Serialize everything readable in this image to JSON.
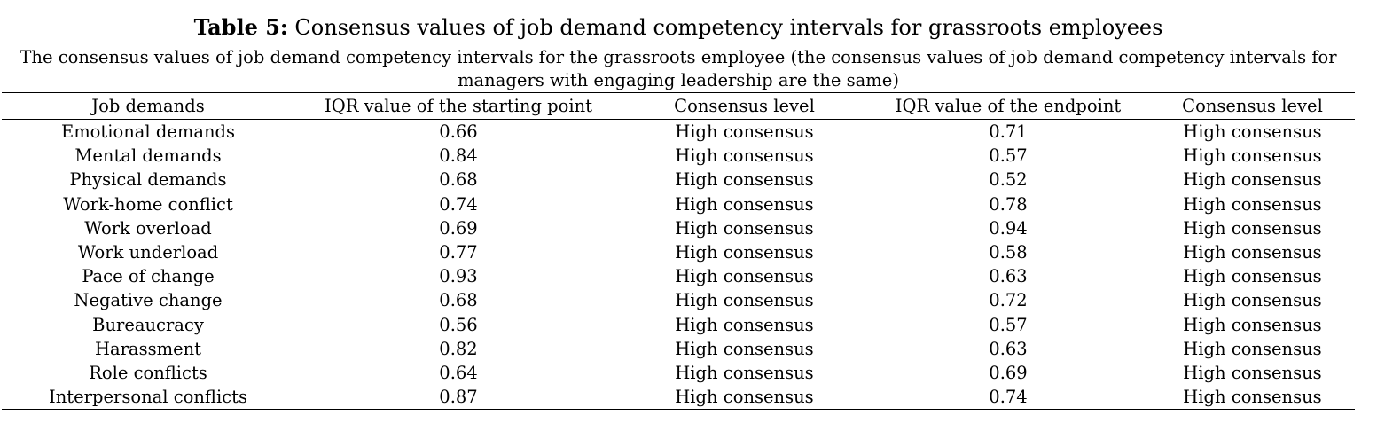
{
  "caption": {
    "label": "Table 5:",
    "text": "Consensus values of job demand competency intervals for grassroots employees"
  },
  "table": {
    "span_header": "The consensus values of job demand competency intervals for the grassroots employee (the consensus values of job demand competency intervals for managers with engaging leadership are the same)",
    "columns": [
      "Job demands",
      "IQR value of the starting point",
      "Consensus level",
      "IQR value of the endpoint",
      "Consensus level"
    ],
    "rows": [
      [
        "Emotional demands",
        "0.66",
        "High consensus",
        "0.71",
        "High consensus"
      ],
      [
        "Mental demands",
        "0.84",
        "High consensus",
        "0.57",
        "High consensus"
      ],
      [
        "Physical demands",
        "0.68",
        "High consensus",
        "0.52",
        "High consensus"
      ],
      [
        "Work-home conflict",
        "0.74",
        "High consensus",
        "0.78",
        "High consensus"
      ],
      [
        "Work overload",
        "0.69",
        "High consensus",
        "0.94",
        "High consensus"
      ],
      [
        "Work underload",
        "0.77",
        "High consensus",
        "0.58",
        "High consensus"
      ],
      [
        "Pace of change",
        "0.93",
        "High consensus",
        "0.63",
        "High consensus"
      ],
      [
        "Negative change",
        "0.68",
        "High consensus",
        "0.72",
        "High consensus"
      ],
      [
        "Bureaucracy",
        "0.56",
        "High consensus",
        "0.57",
        "High consensus"
      ],
      [
        "Harassment",
        "0.82",
        "High consensus",
        "0.63",
        "High consensus"
      ],
      [
        "Role conflicts",
        "0.64",
        "High consensus",
        "0.69",
        "High consensus"
      ],
      [
        "Interpersonal conflicts",
        "0.87",
        "High consensus",
        "0.74",
        "High consensus"
      ]
    ]
  }
}
